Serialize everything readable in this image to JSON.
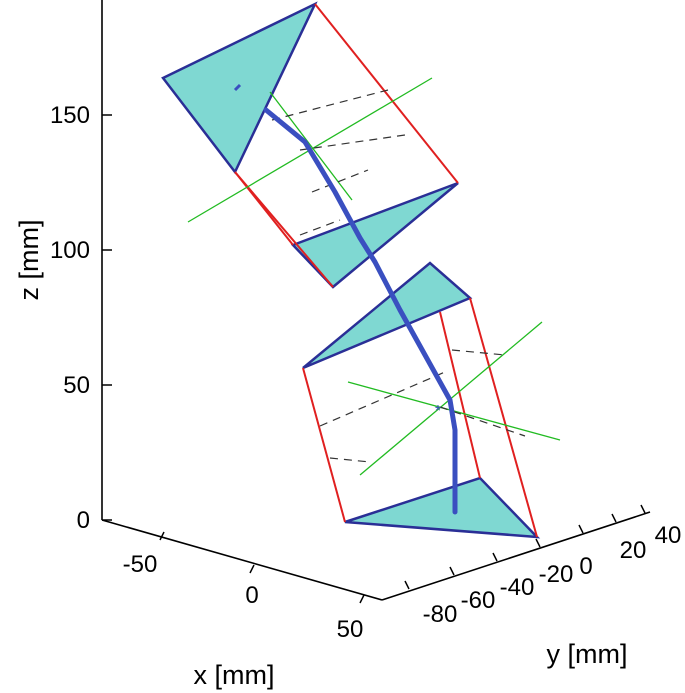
{
  "chart_data": {
    "type": "3d-line",
    "xlabel": "x [mm]",
    "ylabel": "y [mm]",
    "zlabel": "z [mm]",
    "x_ticks": [
      "-50",
      "0",
      "50"
    ],
    "y_ticks": [
      "-80",
      "-60",
      "-40",
      "-20",
      "0",
      "20",
      "40"
    ],
    "z_ticks": [
      "0",
      "50",
      "100",
      "150"
    ],
    "xlim": [
      -80,
      50
    ],
    "ylim": [
      -80,
      40
    ],
    "zlim": [
      0,
      190
    ],
    "grid": false,
    "centerline": {
      "description": "spine segment path (z values in mm, read from z axis)",
      "z": [
        0,
        20,
        40,
        50,
        70,
        100,
        130,
        150,
        155
      ]
    },
    "colors": {
      "face_fill": "#7fd8d2",
      "face_edge": "#2a2f96",
      "prism_edge": "#e02020",
      "centerline": "#3a4fc0",
      "frame_axes": "#22bb22",
      "dashed": "#333333",
      "axis": "#000000"
    }
  }
}
